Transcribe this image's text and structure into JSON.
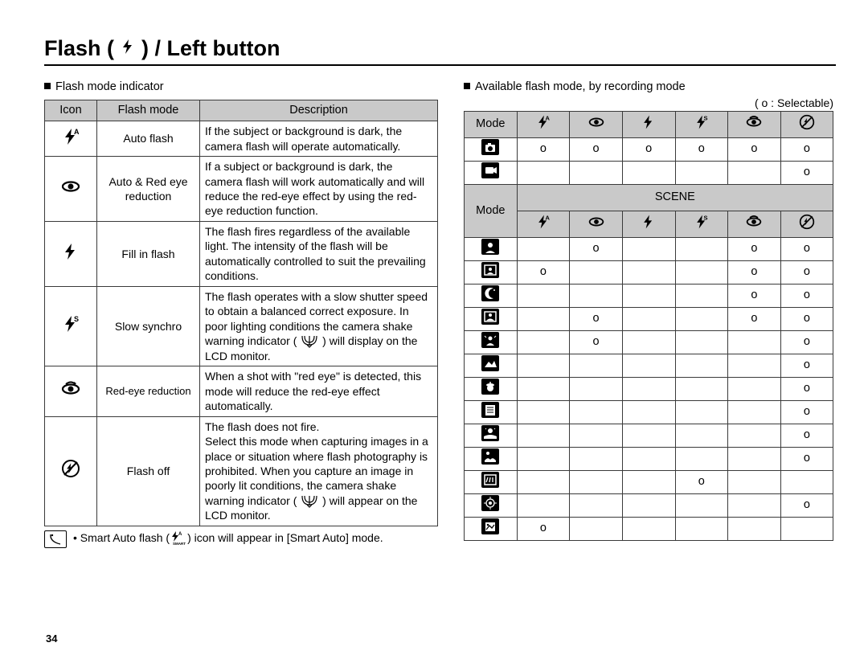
{
  "page": {
    "title_pre": "Flash (",
    "title_post": ") / Left button",
    "page_number": "34"
  },
  "left": {
    "heading": "Flash mode indicator",
    "cols": [
      "Icon",
      "Flash mode",
      "Description"
    ],
    "rows": [
      {
        "mode": "Auto flash",
        "desc": "If the subject or background is dark, the camera flash will operate automatically."
      },
      {
        "mode": "Auto & Red eye reduction",
        "desc": "If a subject or background is dark, the camera flash will work automatically and will reduce the red-eye effect by using the red-eye reduction function."
      },
      {
        "mode": "Fill in flash",
        "desc": "The flash fires regardless of the available light. The intensity of the flash will be automatically controlled to suit the prevailing conditions."
      },
      {
        "mode": "Slow synchro",
        "desc_pre": "The flash operates with a slow shutter speed to obtain a balanced correct exposure. In poor lighting conditions the camera shake warning indicator (",
        "desc_post": ") will display on the LCD monitor."
      },
      {
        "mode": "Red-eye reduction",
        "desc": "When a shot with \"red eye\" is detected, this mode will reduce the red-eye effect automatically."
      },
      {
        "mode": "Flash off",
        "desc_pre": "The flash does not fire.\nSelect this mode when capturing images in a place or situation where flash photography is prohibited. When you capture an image in poorly lit conditions, the camera shake warning indicator (",
        "desc_post": ") will appear on the LCD monitor."
      }
    ],
    "note_pre": "Smart Auto flash (",
    "note_post": ") icon will appear in [Smart Auto] mode."
  },
  "right": {
    "heading": "Available flash mode, by recording mode",
    "legend": "( o : Selectable)",
    "mode_label": "Mode",
    "scene_label": "SCENE",
    "mark": "o",
    "top_rows": [
      [
        "o",
        "o",
        "o",
        "o",
        "o",
        "o"
      ],
      [
        "",
        "",
        "",
        "",
        "",
        "o"
      ]
    ],
    "scene_rows": [
      [
        "",
        "o",
        "",
        "",
        "o",
        "o"
      ],
      [
        "o",
        "",
        "",
        "",
        "o",
        "o"
      ],
      [
        "",
        "",
        "",
        "",
        "o",
        "o"
      ],
      [
        "",
        "o",
        "",
        "",
        "o",
        "o"
      ],
      [
        "",
        "o",
        "",
        "",
        "",
        "o"
      ],
      [
        "",
        "",
        "",
        "",
        "",
        "o"
      ],
      [
        "",
        "",
        "",
        "",
        "",
        "o"
      ],
      [
        "",
        "",
        "",
        "",
        "",
        "o"
      ],
      [
        "",
        "",
        "",
        "",
        "",
        "o"
      ],
      [
        "",
        "",
        "",
        "",
        "",
        "o"
      ],
      [
        "",
        "",
        "",
        "o",
        "",
        ""
      ],
      [
        "",
        "",
        "",
        "",
        "",
        "o"
      ],
      [
        "o",
        "",
        "",
        "",
        "",
        ""
      ]
    ]
  }
}
